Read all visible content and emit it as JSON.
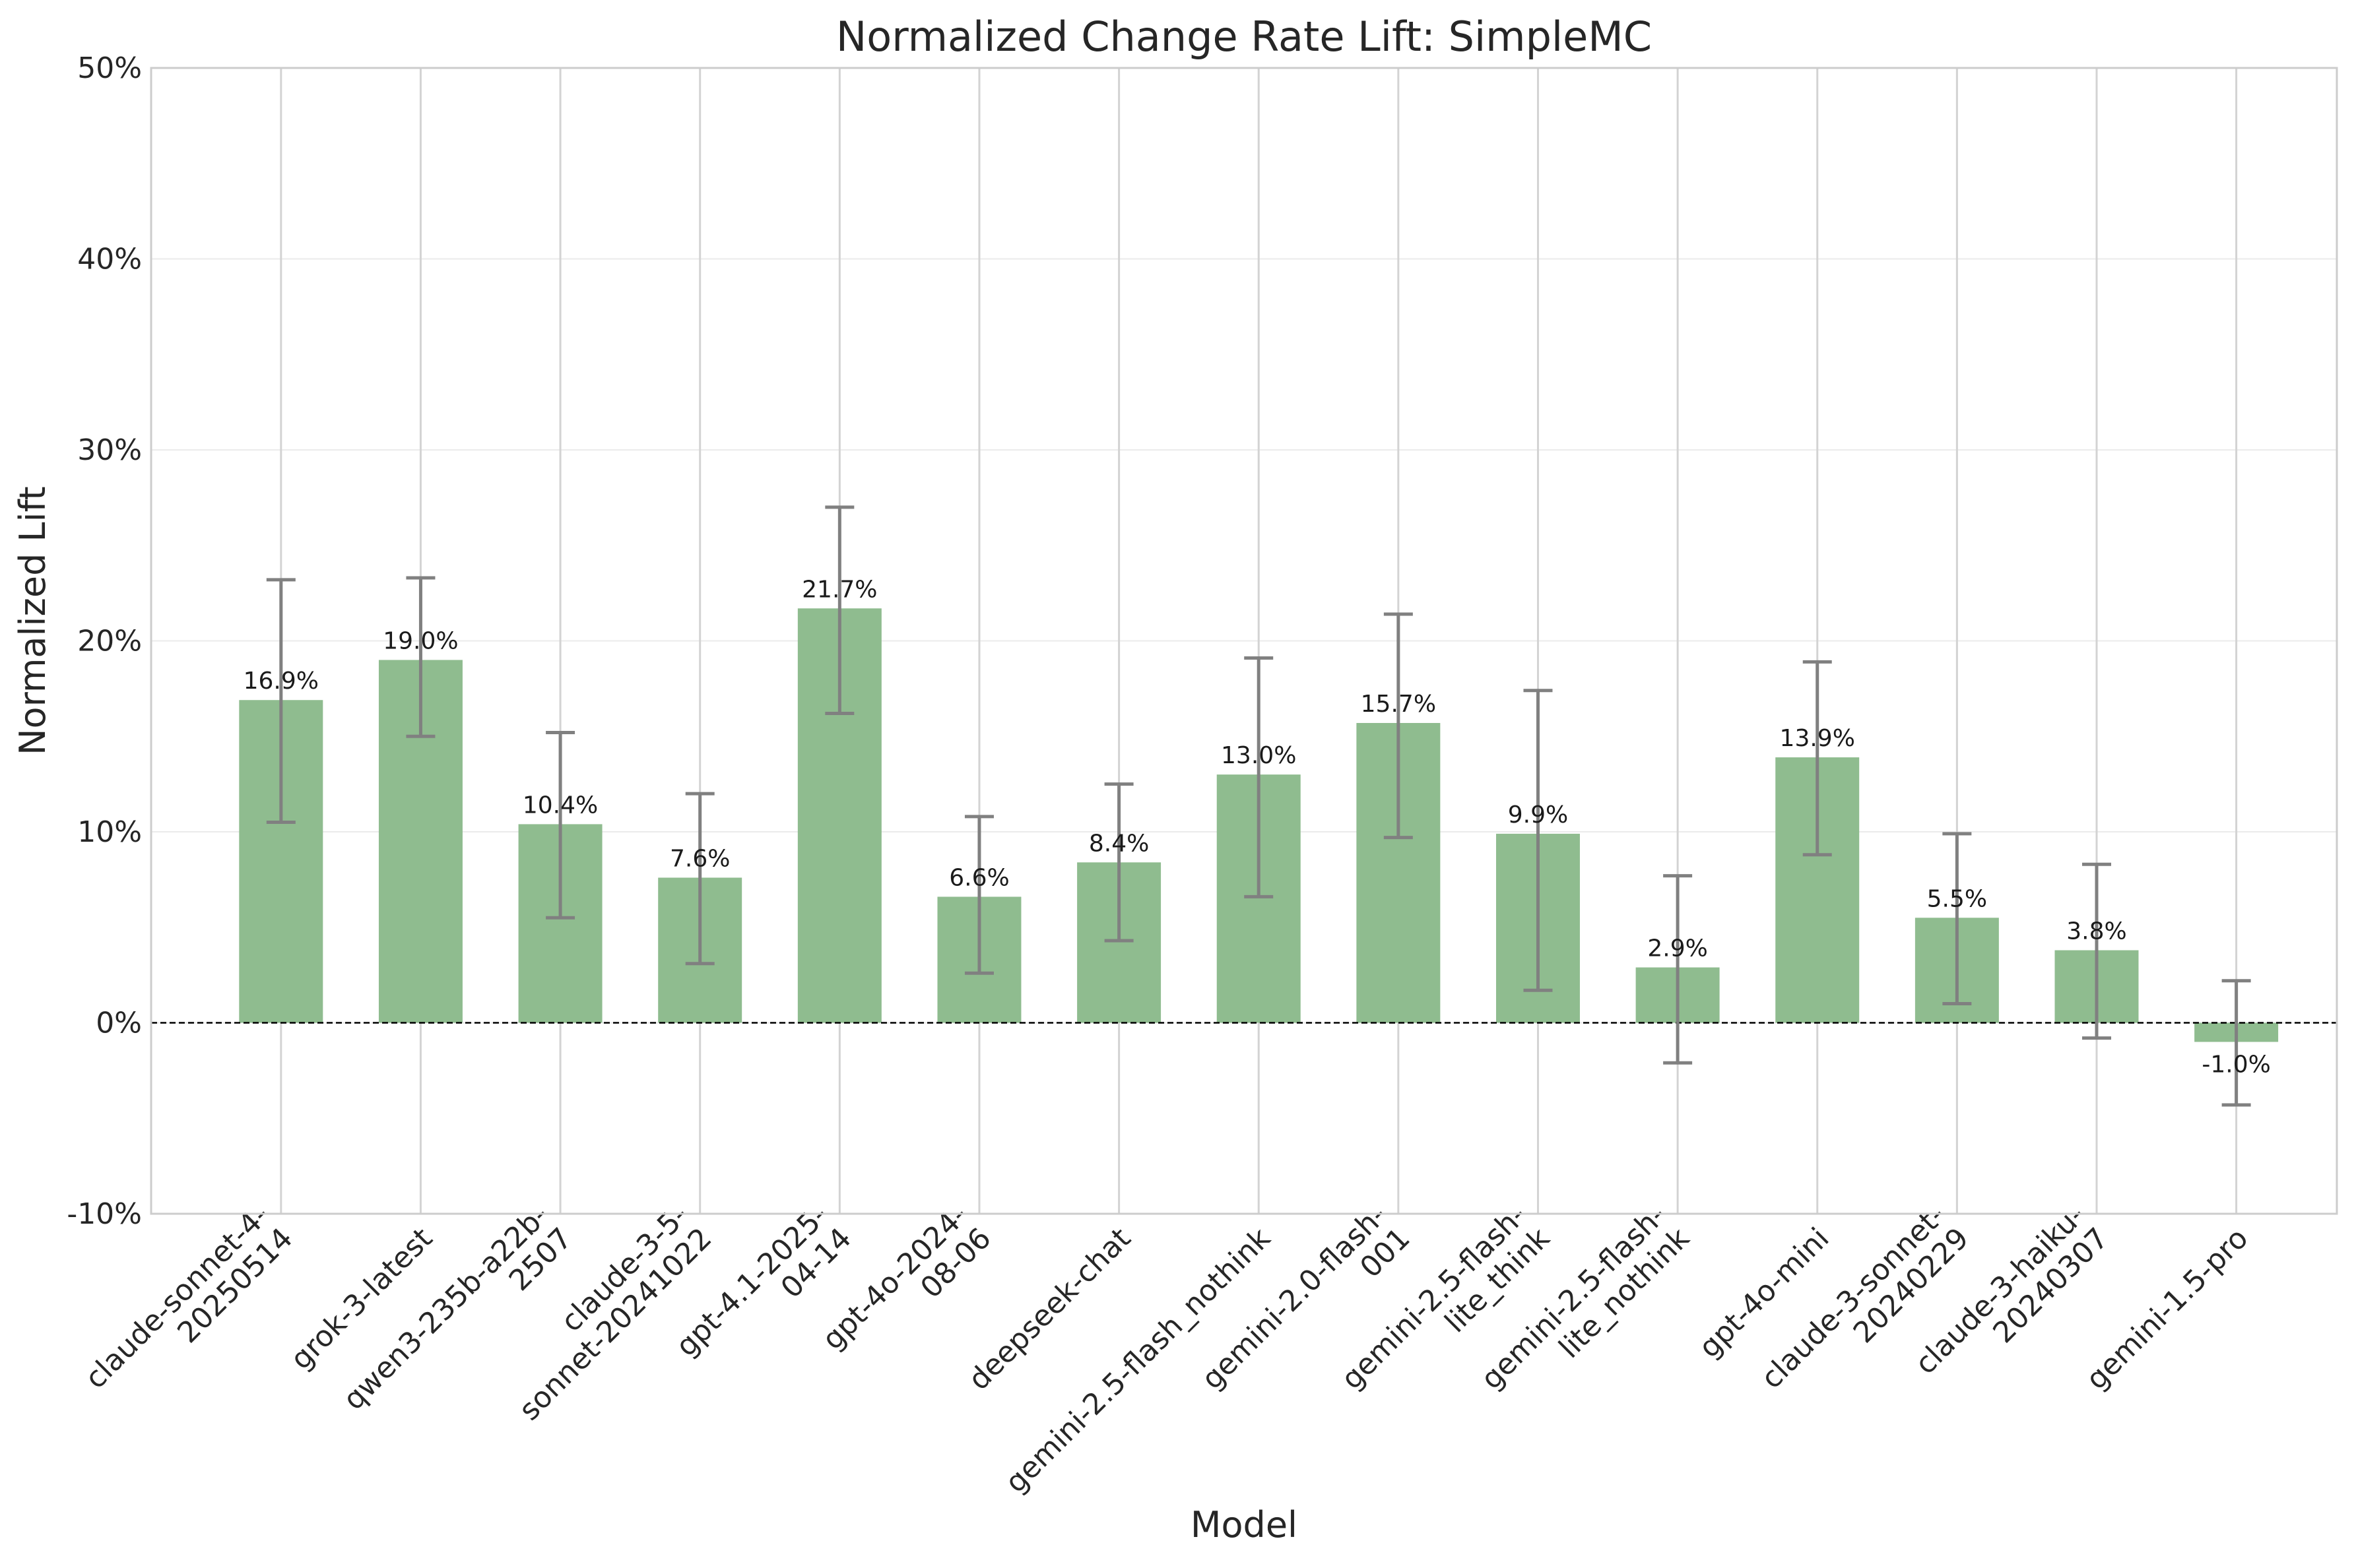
{
  "chart_data": {
    "type": "bar",
    "title": "Normalized Change Rate Lift: SimpleMC",
    "xlabel": "Model",
    "ylabel": "Normalized Lift",
    "ylim": [
      -10,
      50
    ],
    "yticks": [
      -10,
      0,
      10,
      20,
      30,
      40,
      50
    ],
    "ytick_labels": [
      "-10%",
      "0%",
      "10%",
      "20%",
      "30%",
      "40%",
      "50%"
    ],
    "grid": true,
    "reference_line": 0,
    "bar_color": "#8fbc8f",
    "error_bar_color": "#808080",
    "categories": [
      [
        "claude-sonnet-4-",
        "20250514"
      ],
      [
        "grok-3-latest"
      ],
      [
        "qwen3-235b-a22b-",
        "2507"
      ],
      [
        "claude-3-5-",
        "sonnet-20241022"
      ],
      [
        "gpt-4.1-2025-",
        "04-14"
      ],
      [
        "gpt-4o-2024-",
        "08-06"
      ],
      [
        "deepseek-chat"
      ],
      [
        "gemini-2.5-flash_nothink"
      ],
      [
        "gemini-2.0-flash-",
        "001"
      ],
      [
        "gemini-2.5-flash-",
        "lite_think"
      ],
      [
        "gemini-2.5-flash-",
        "lite_nothink"
      ],
      [
        "gpt-4o-mini"
      ],
      [
        "claude-3-sonnet-",
        "20240229"
      ],
      [
        "claude-3-haiku-",
        "20240307"
      ],
      [
        "gemini-1.5-pro"
      ]
    ],
    "values": [
      16.9,
      19.0,
      10.4,
      7.6,
      21.7,
      6.6,
      8.4,
      13.0,
      15.7,
      9.9,
      2.9,
      13.9,
      5.5,
      3.8,
      -1.0
    ],
    "value_labels": [
      "16.9%",
      "19.0%",
      "10.4%",
      "7.6%",
      "21.7%",
      "6.6%",
      "8.4%",
      "13.0%",
      "15.7%",
      "9.9%",
      "2.9%",
      "13.9%",
      "5.5%",
      "3.8%",
      "-1.0%"
    ],
    "error_low": [
      10.5,
      15.0,
      5.5,
      3.1,
      16.2,
      2.6,
      4.3,
      6.6,
      9.7,
      1.7,
      -2.1,
      8.8,
      1.0,
      -0.8,
      -4.3
    ],
    "error_high": [
      23.2,
      23.3,
      15.2,
      12.0,
      27.0,
      10.8,
      12.5,
      19.1,
      21.4,
      17.4,
      7.7,
      18.9,
      9.9,
      8.3,
      2.2
    ]
  }
}
